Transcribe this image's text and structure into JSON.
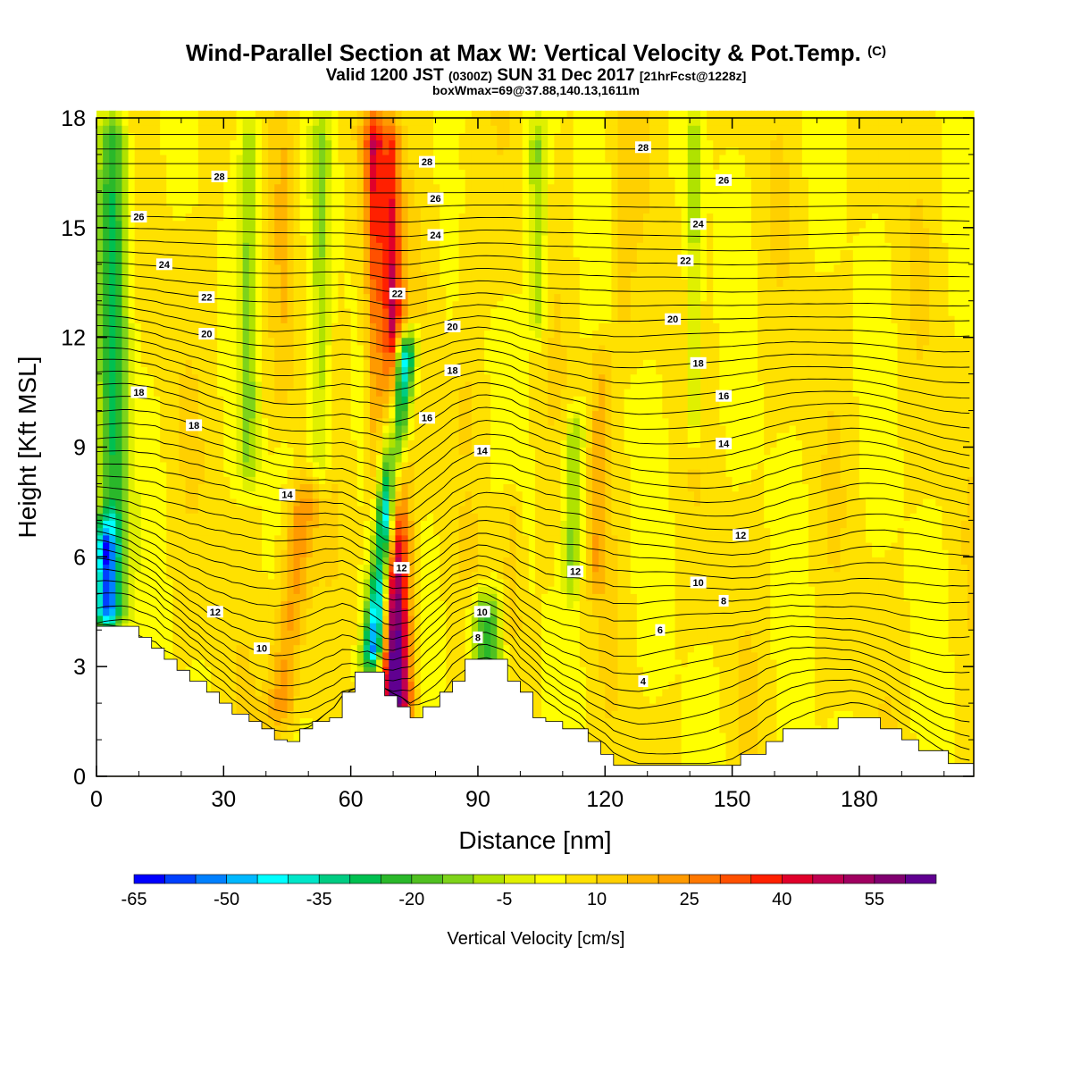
{
  "header": {
    "title": "Wind-Parallel Section at Max W: Vertical Velocity & Pot.Temp.",
    "title_mark": "(C)",
    "valid_prefix": "Valid 1200 JST",
    "valid_z": "(0300Z)",
    "valid_date": "SUN 31 Dec 2017",
    "forecast": "[21hrFcst@1228z]",
    "boxinfo": "boxWmax=69@37.88,140.13,1611m"
  },
  "chart_data": {
    "type": "heatmap",
    "xlabel": "Distance [nm]",
    "ylabel": "Height [Kft MSL]",
    "xlim": [
      0,
      207
    ],
    "ylim": [
      0,
      18
    ],
    "x_ticks": [
      0,
      30,
      60,
      90,
      120,
      150,
      180
    ],
    "y_ticks": [
      0,
      3,
      6,
      9,
      12,
      15,
      18
    ],
    "terrain": [
      [
        0,
        4.1
      ],
      [
        10,
        4.1
      ],
      [
        10,
        3.8
      ],
      [
        13,
        3.8
      ],
      [
        13,
        3.5
      ],
      [
        16,
        3.5
      ],
      [
        16,
        3.2
      ],
      [
        19,
        3.2
      ],
      [
        19,
        2.9
      ],
      [
        22,
        2.9
      ],
      [
        22,
        2.6
      ],
      [
        26,
        2.6
      ],
      [
        26,
        2.3
      ],
      [
        29,
        2.3
      ],
      [
        29,
        2.0
      ],
      [
        32,
        2.0
      ],
      [
        32,
        1.7
      ],
      [
        36,
        1.7
      ],
      [
        36,
        1.5
      ],
      [
        39,
        1.5
      ],
      [
        39,
        1.3
      ],
      [
        42,
        1.3
      ],
      [
        42,
        1.0
      ],
      [
        45,
        1.0
      ],
      [
        45,
        0.95
      ],
      [
        48,
        0.95
      ],
      [
        48,
        1.3
      ],
      [
        51,
        1.3
      ],
      [
        51,
        1.5
      ],
      [
        55,
        1.5
      ],
      [
        55,
        1.6
      ],
      [
        58,
        1.6
      ],
      [
        58,
        2.3
      ],
      [
        61,
        2.3
      ],
      [
        61,
        2.85
      ],
      [
        68,
        2.85
      ],
      [
        68,
        2.2
      ],
      [
        71,
        2.2
      ],
      [
        71,
        1.9
      ],
      [
        74,
        1.9
      ],
      [
        74,
        1.6
      ],
      [
        77,
        1.6
      ],
      [
        77,
        1.9
      ],
      [
        81,
        1.9
      ],
      [
        81,
        2.3
      ],
      [
        84,
        2.3
      ],
      [
        84,
        2.6
      ],
      [
        87,
        2.6
      ],
      [
        87,
        3.2
      ],
      [
        97,
        3.2
      ],
      [
        97,
        2.6
      ],
      [
        100,
        2.6
      ],
      [
        100,
        2.3
      ],
      [
        103,
        2.3
      ],
      [
        103,
        1.6
      ],
      [
        106,
        1.6
      ],
      [
        106,
        1.5
      ],
      [
        110,
        1.5
      ],
      [
        110,
        1.3
      ],
      [
        116,
        1.3
      ],
      [
        116,
        0.95
      ],
      [
        119,
        0.95
      ],
      [
        119,
        0.6
      ],
      [
        122,
        0.6
      ],
      [
        122,
        0.3
      ],
      [
        152,
        0.3
      ],
      [
        152,
        0.6
      ],
      [
        158,
        0.6
      ],
      [
        158,
        0.95
      ],
      [
        162,
        0.95
      ],
      [
        162,
        1.3
      ],
      [
        175,
        1.3
      ],
      [
        175,
        1.6
      ],
      [
        185,
        1.6
      ],
      [
        185,
        1.3
      ],
      [
        190,
        1.3
      ],
      [
        190,
        1.0
      ],
      [
        194,
        1.0
      ],
      [
        194,
        0.7
      ],
      [
        201,
        0.7
      ],
      [
        201,
        0.35
      ],
      [
        207,
        0.35
      ]
    ],
    "vertical_velocity_features": [
      {
        "x": 71,
        "y": [
          1.5,
          18
        ],
        "tilt": -4,
        "width": 8,
        "value": 65
      },
      {
        "x": 65,
        "y": [
          2.9,
          12
        ],
        "tilt": 8,
        "width": 6,
        "value": -60
      },
      {
        "x": 68,
        "y": [
          6.5,
          18
        ],
        "tilt": -0.5,
        "width": 4,
        "value": -25
      },
      {
        "x": 92,
        "y": [
          2.5,
          5
        ],
        "tilt": 0,
        "width": 8,
        "value": -25
      },
      {
        "x": 98,
        "y": [
          3.5,
          8
        ],
        "tilt": 0,
        "width": 6,
        "value": 15
      },
      {
        "x": 118,
        "y": [
          5,
          12
        ],
        "tilt": 1,
        "width": 6,
        "value": 18
      },
      {
        "x": 112,
        "y": [
          5,
          10
        ],
        "tilt": 1,
        "width": 5,
        "value": -12
      },
      {
        "x": 43,
        "y": [
          1.3,
          8
        ],
        "tilt": 6,
        "width": 8,
        "value": 25
      },
      {
        "x": 4,
        "y": [
          4,
          18
        ],
        "tilt": 0,
        "width": 8,
        "value": -25
      },
      {
        "x": 28,
        "y": [
          5,
          18
        ],
        "tilt": 0,
        "width": 6,
        "value": 8
      },
      {
        "x": 36,
        "y": [
          8,
          18
        ],
        "tilt": 0,
        "width": 5,
        "value": -10
      },
      {
        "x": 44,
        "y": [
          10,
          18
        ],
        "tilt": 0,
        "width": 5,
        "value": 12
      },
      {
        "x": 53,
        "y": [
          8,
          18
        ],
        "tilt": 0,
        "width": 5,
        "value": -8
      },
      {
        "x": 87,
        "y": [
          9,
          18
        ],
        "tilt": 0,
        "width": 6,
        "value": 10
      },
      {
        "x": 104,
        "y": [
          12,
          18
        ],
        "tilt": 0,
        "width": 5,
        "value": -10
      },
      {
        "x": 124,
        "y": [
          12,
          18
        ],
        "tilt": 0,
        "width": 6,
        "value": 12
      },
      {
        "x": 141,
        "y": [
          9,
          18
        ],
        "tilt": 0,
        "width": 4,
        "value": -8
      },
      {
        "x": 2,
        "y": [
          4,
          7
        ],
        "tilt": 0,
        "width": 6,
        "value": -40
      }
    ],
    "contour_labels": [
      {
        "text": "28",
        "x": 29,
        "y": 16.4
      },
      {
        "text": "26",
        "x": 10,
        "y": 15.3
      },
      {
        "text": "24",
        "x": 16,
        "y": 14.0
      },
      {
        "text": "22",
        "x": 26,
        "y": 13.1
      },
      {
        "text": "20",
        "x": 26,
        "y": 12.1
      },
      {
        "text": "18",
        "x": 10,
        "y": 10.5
      },
      {
        "text": "18",
        "x": 23,
        "y": 9.6
      },
      {
        "text": "14",
        "x": 45,
        "y": 7.7
      },
      {
        "text": "12",
        "x": 28,
        "y": 4.5
      },
      {
        "text": "10",
        "x": 39,
        "y": 3.5
      },
      {
        "text": "28",
        "x": 78,
        "y": 16.8
      },
      {
        "text": "26",
        "x": 80,
        "y": 15.8
      },
      {
        "text": "24",
        "x": 80,
        "y": 14.8
      },
      {
        "text": "22",
        "x": 71,
        "y": 13.2
      },
      {
        "text": "20",
        "x": 84,
        "y": 12.3
      },
      {
        "text": "18",
        "x": 84,
        "y": 11.1
      },
      {
        "text": "16",
        "x": 78,
        "y": 9.8
      },
      {
        "text": "14",
        "x": 91,
        "y": 8.9
      },
      {
        "text": "12",
        "x": 72,
        "y": 5.7
      },
      {
        "text": "10",
        "x": 91,
        "y": 4.5
      },
      {
        "text": "8",
        "x": 90,
        "y": 3.8
      },
      {
        "text": "28",
        "x": 129,
        "y": 17.2
      },
      {
        "text": "26",
        "x": 148,
        "y": 16.3
      },
      {
        "text": "24",
        "x": 142,
        "y": 15.1
      },
      {
        "text": "22",
        "x": 139,
        "y": 14.1
      },
      {
        "text": "20",
        "x": 136,
        "y": 12.5
      },
      {
        "text": "18",
        "x": 142,
        "y": 11.3
      },
      {
        "text": "16",
        "x": 148,
        "y": 10.4
      },
      {
        "text": "14",
        "x": 148,
        "y": 9.1
      },
      {
        "text": "12",
        "x": 113,
        "y": 5.6
      },
      {
        "text": "12",
        "x": 152,
        "y": 6.6
      },
      {
        "text": "10",
        "x": 142,
        "y": 5.3
      },
      {
        "text": "8",
        "x": 148,
        "y": 4.8
      },
      {
        "text": "6",
        "x": 133,
        "y": 4.0
      },
      {
        "text": "4",
        "x": 129,
        "y": 2.6
      }
    ],
    "colorbar": {
      "label": "Vertical Velocity [cm/s]",
      "tick_labels": [
        "-65",
        "-50",
        "-35",
        "-20",
        "-5",
        "10",
        "25",
        "40",
        "55"
      ],
      "tick_values": [
        -65,
        -50,
        -35,
        -20,
        -5,
        10,
        25,
        40,
        55
      ],
      "min": -65,
      "max": 65,
      "colors": [
        "#0000ff",
        "#0040ff",
        "#0080ff",
        "#00b8ff",
        "#00ffff",
        "#00e6c8",
        "#00cc82",
        "#00c050",
        "#2ab82a",
        "#50c020",
        "#7ed31a",
        "#b0e200",
        "#e0f000",
        "#ffff00",
        "#ffe100",
        "#ffd000",
        "#ffb400",
        "#ff9a00",
        "#ff7800",
        "#ff5000",
        "#ff2000",
        "#e0002a",
        "#c00050",
        "#a00060",
        "#800070",
        "#600090"
      ]
    }
  }
}
